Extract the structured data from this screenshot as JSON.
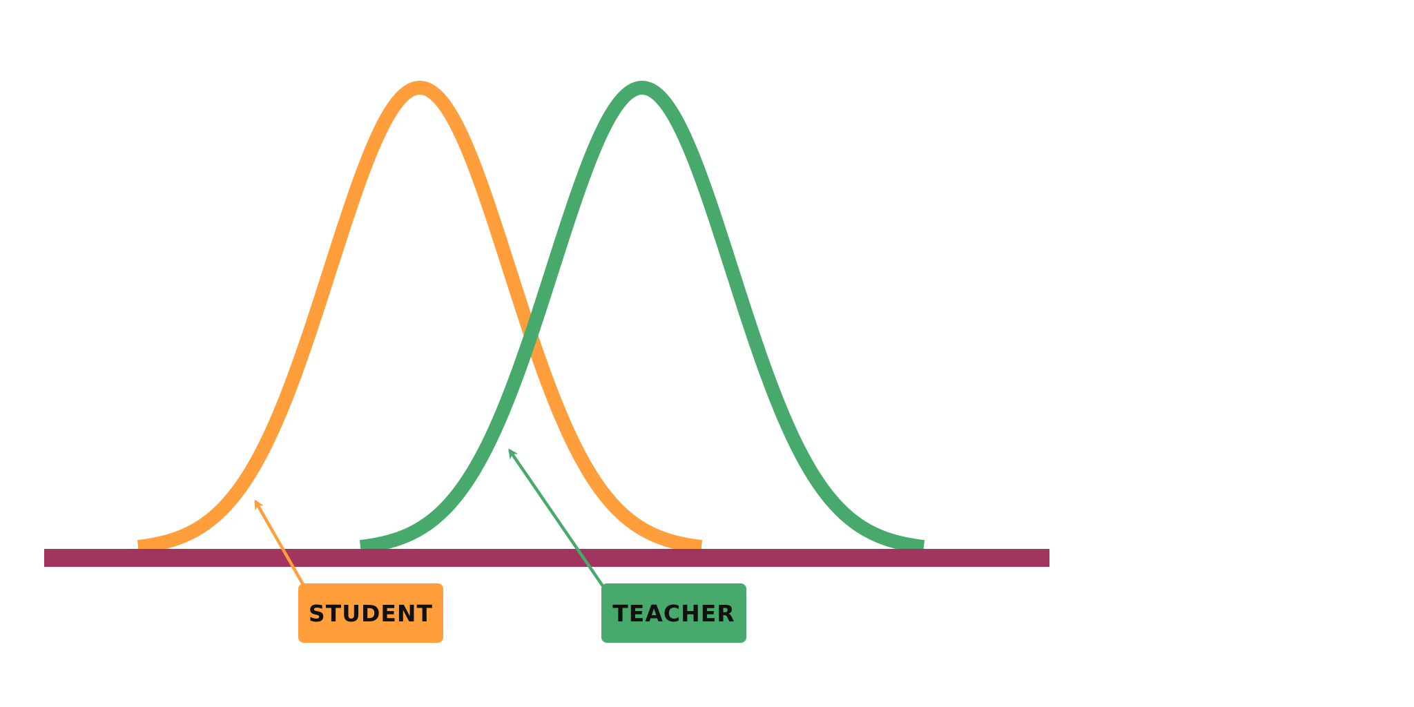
{
  "labels": {
    "student": "STUDENT",
    "teacher": "TEACHER"
  },
  "colors": {
    "student": "#FF9E3A",
    "teacher": "#47AA6C",
    "baseline": "#A0355F",
    "background": "#FFFFFF"
  }
}
